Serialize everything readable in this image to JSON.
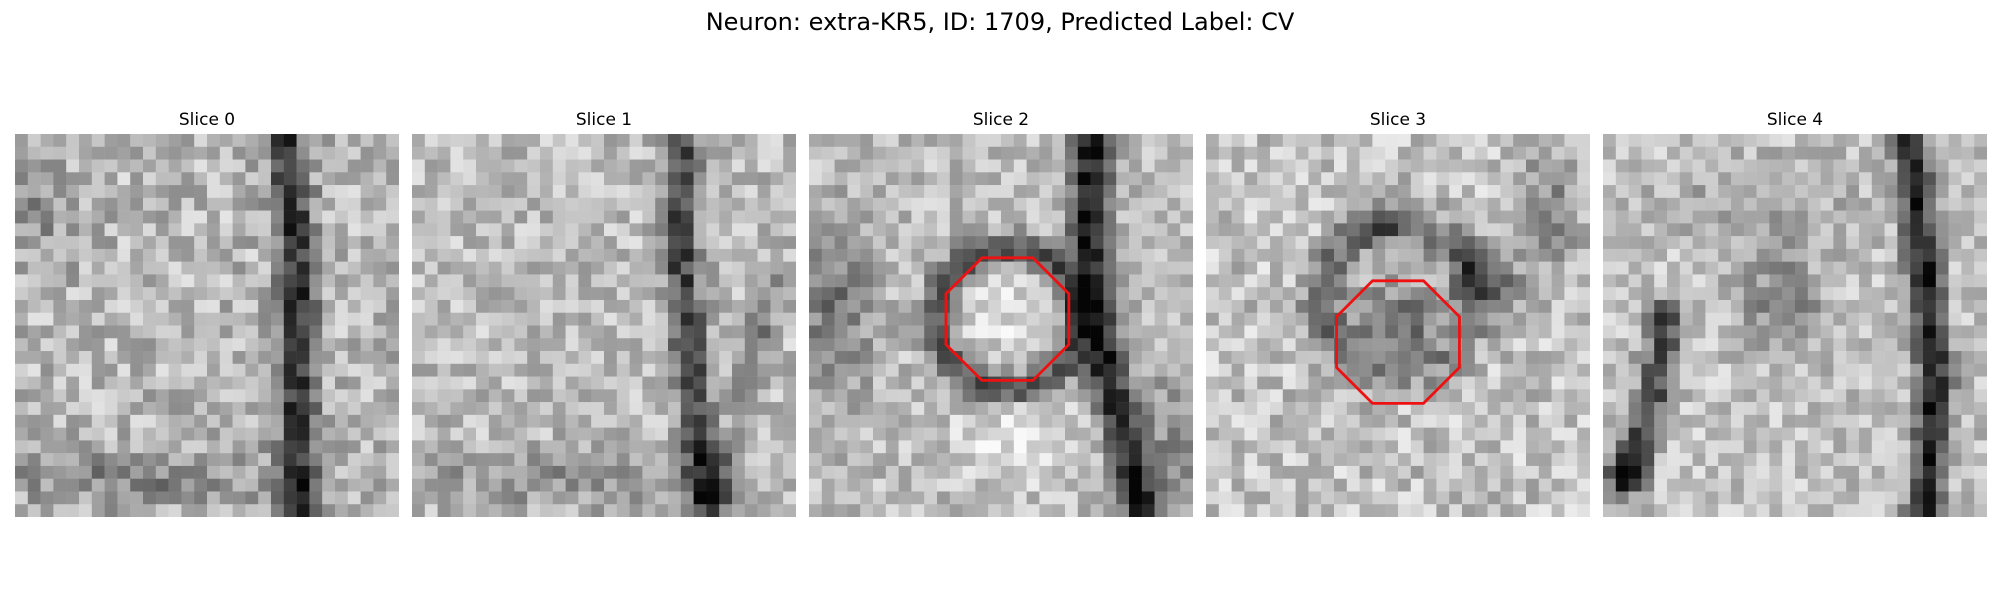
{
  "figure": {
    "title": "Neuron: extra-KR5, ID: 1709, Predicted Label: CV"
  },
  "colors": {
    "roi_outline": "#ee1111",
    "colormap": "grayscale"
  },
  "slices": [
    {
      "label": "Slice 0",
      "has_roi": false
    },
    {
      "label": "Slice 1",
      "has_roi": false
    },
    {
      "label": "Slice 2",
      "has_roi": true,
      "roi_shape": "octagon"
    },
    {
      "label": "Slice 3",
      "has_roi": true,
      "roi_shape": "octagon"
    },
    {
      "label": "Slice 4",
      "has_roi": false
    }
  ]
}
